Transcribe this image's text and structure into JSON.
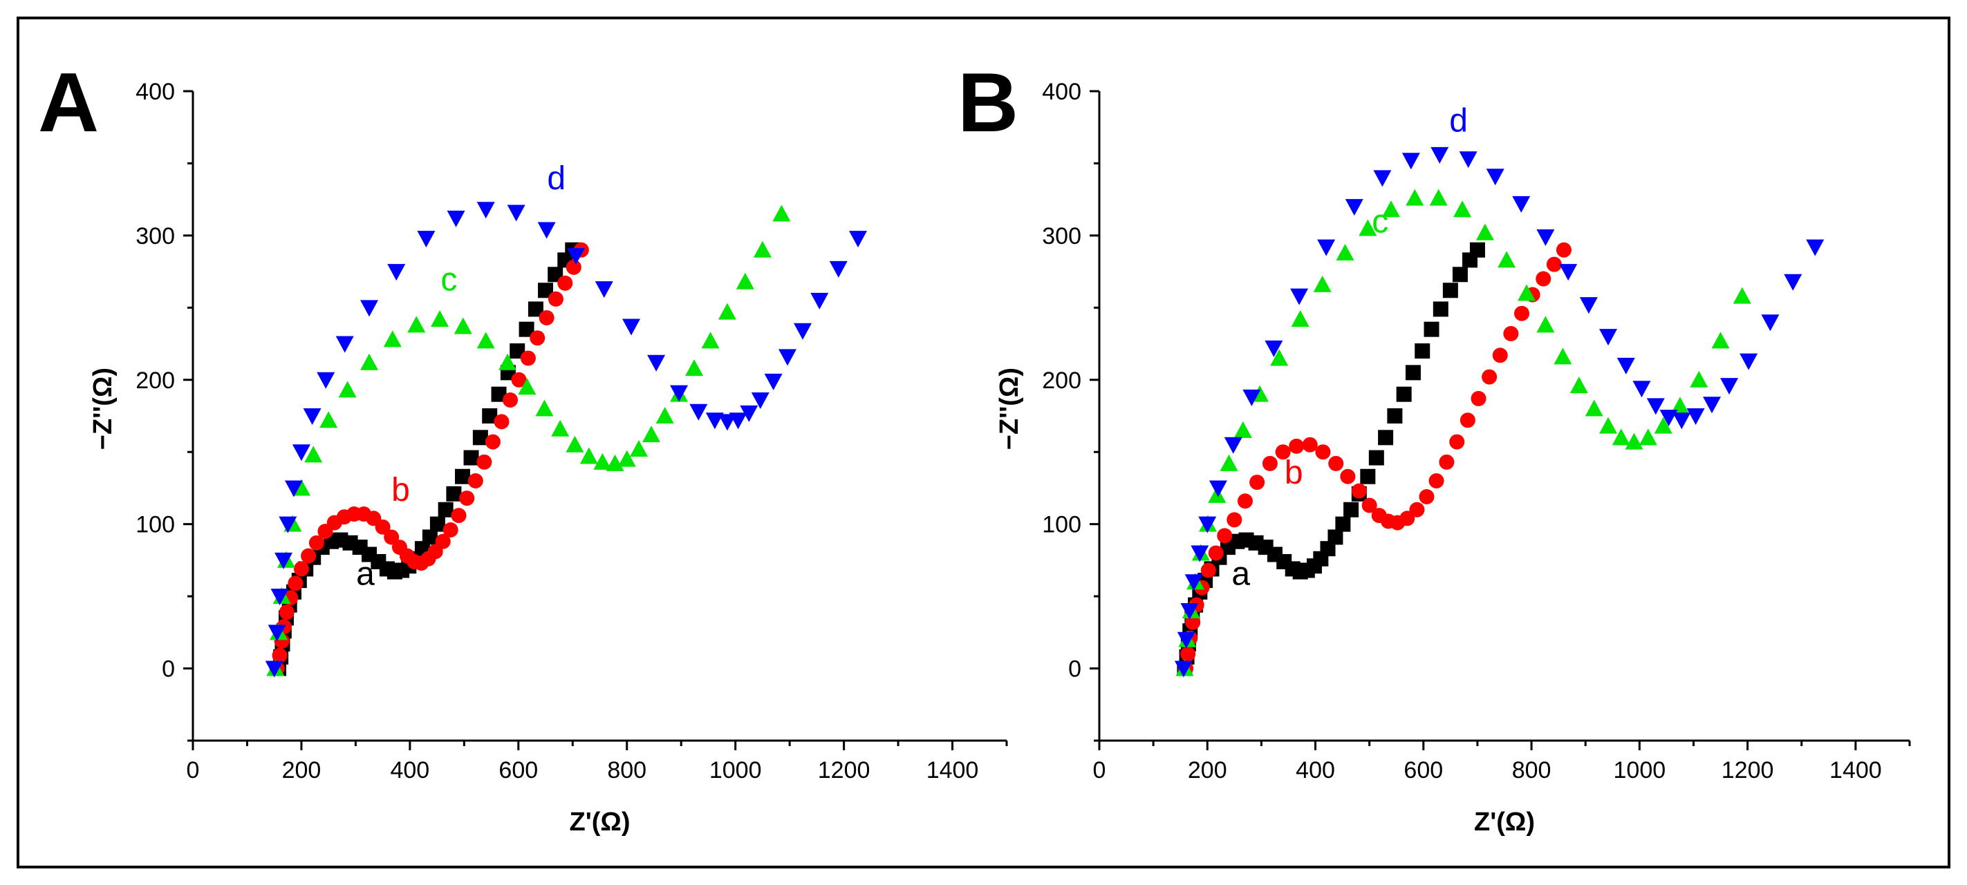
{
  "chart_data": [
    {
      "type": "scatter",
      "panel_label": "A",
      "xlabel": "Z'(Ω)",
      "ylabel": "−Z''(Ω)",
      "xlim": [
        0,
        1500
      ],
      "ylim": [
        -50,
        400
      ],
      "xticks": [
        0,
        200,
        400,
        600,
        800,
        1000,
        1200,
        1400
      ],
      "yticks": [
        0,
        100,
        200,
        300,
        400
      ],
      "series": [
        {
          "name": "a",
          "marker": "square",
          "color": "#000000",
          "x": [
            158,
            162,
            165,
            168,
            172,
            178,
            186,
            196,
            208,
            222,
            238,
            255,
            272,
            290,
            308,
            325,
            342,
            358,
            372,
            385,
            398,
            410,
            423,
            437,
            451,
            466,
            481,
            497,
            513,
            530,
            547,
            564,
            581,
            598,
            615,
            632,
            650,
            668,
            686,
            700
          ],
          "y": [
            0,
            8,
            17,
            26,
            35,
            44,
            53,
            61,
            69,
            77,
            84,
            88,
            89,
            87,
            84,
            79,
            74,
            69,
            67,
            68,
            71,
            76,
            83,
            91,
            100,
            110,
            121,
            133,
            146,
            160,
            175,
            190,
            205,
            220,
            235,
            249,
            262,
            273,
            283,
            290
          ]
        },
        {
          "name": "b",
          "marker": "circle",
          "color": "#ff0000",
          "x": [
            155,
            160,
            164,
            168,
            173,
            180,
            189,
            200,
            213,
            228,
            244,
            261,
            279,
            297,
            315,
            333,
            350,
            366,
            381,
            395,
            408,
            421,
            434,
            447,
            461,
            475,
            490,
            505,
            521,
            537,
            553,
            569,
            585,
            601,
            618,
            635,
            652,
            669,
            686,
            702,
            716
          ],
          "y": [
            0,
            9,
            19,
            29,
            39,
            49,
            59,
            69,
            78,
            87,
            95,
            101,
            105,
            107,
            107,
            104,
            98,
            91,
            84,
            78,
            74,
            73,
            76,
            81,
            88,
            96,
            106,
            118,
            130,
            143,
            157,
            171,
            186,
            200,
            215,
            229,
            243,
            256,
            267,
            278,
            290
          ]
        },
        {
          "name": "c",
          "marker": "triangle-up",
          "color": "#00e600",
          "x": [
            152,
            158,
            164,
            172,
            184,
            200,
            222,
            250,
            285,
            325,
            368,
            412,
            455,
            498,
            540,
            580,
            616,
            648,
            677,
            704,
            730,
            755,
            778,
            800,
            822,
            845,
            870,
            896,
            924,
            954,
            985,
            1018,
            1050,
            1085
          ],
          "y": [
            0,
            25,
            50,
            75,
            100,
            125,
            148,
            172,
            193,
            212,
            228,
            238,
            242,
            237,
            227,
            212,
            195,
            180,
            166,
            155,
            147,
            143,
            142,
            145,
            152,
            162,
            175,
            190,
            208,
            227,
            247,
            268,
            290,
            315
          ]
        },
        {
          "name": "d",
          "marker": "triangle-down",
          "color": "#0000ff",
          "x": [
            150,
            155,
            160,
            167,
            175,
            186,
            200,
            220,
            245,
            280,
            325,
            375,
            430,
            485,
            540,
            596,
            652,
            706,
            758,
            808,
            854,
            896,
            932,
            962,
            985,
            1005,
            1025,
            1046,
            1070,
            1096,
            1124,
            1155,
            1190,
            1226
          ],
          "y": [
            0,
            25,
            50,
            75,
            100,
            125,
            150,
            175,
            200,
            225,
            250,
            275,
            298,
            312,
            318,
            316,
            304,
            286,
            263,
            237,
            212,
            191,
            178,
            172,
            171,
            172,
            177,
            186,
            199,
            216,
            234,
            255,
            277,
            298
          ]
        }
      ],
      "annotations": [
        {
          "text": "a",
          "x": 318,
          "y": 58,
          "color": "#000000"
        },
        {
          "text": "b",
          "x": 383,
          "y": 116,
          "color": "#ff0000"
        },
        {
          "text": "c",
          "x": 472,
          "y": 262,
          "color": "#00e600"
        },
        {
          "text": "d",
          "x": 670,
          "y": 332,
          "color": "#0000ff"
        }
      ]
    },
    {
      "type": "scatter",
      "panel_label": "B",
      "xlabel": "Z'(Ω)",
      "ylabel": "−Z''(Ω)",
      "xlim": [
        0,
        1500
      ],
      "ylim": [
        -50,
        400
      ],
      "xticks": [
        0,
        200,
        400,
        600,
        800,
        1000,
        1200,
        1400
      ],
      "yticks": [
        0,
        100,
        200,
        300,
        400
      ],
      "series": [
        {
          "name": "a",
          "marker": "square",
          "color": "#000000",
          "x": [
            158,
            162,
            165,
            168,
            172,
            178,
            186,
            196,
            208,
            222,
            238,
            255,
            272,
            290,
            308,
            325,
            342,
            358,
            372,
            385,
            398,
            410,
            423,
            437,
            451,
            466,
            481,
            497,
            513,
            530,
            547,
            564,
            581,
            598,
            615,
            632,
            650,
            668,
            686,
            700
          ],
          "y": [
            0,
            8,
            17,
            26,
            35,
            44,
            53,
            61,
            69,
            77,
            84,
            88,
            89,
            87,
            84,
            79,
            74,
            69,
            67,
            68,
            71,
            76,
            83,
            91,
            100,
            110,
            121,
            133,
            146,
            160,
            175,
            190,
            205,
            220,
            235,
            249,
            262,
            273,
            283,
            290
          ]
        },
        {
          "name": "b",
          "marker": "circle",
          "color": "#ff0000",
          "x": [
            160,
            164,
            168,
            173,
            180,
            190,
            202,
            216,
            232,
            250,
            270,
            292,
            316,
            340,
            365,
            390,
            414,
            438,
            460,
            481,
            500,
            518,
            535,
            552,
            570,
            588,
            606,
            624,
            643,
            662,
            682,
            702,
            722,
            742,
            762,
            782,
            802,
            822,
            842,
            860
          ],
          "y": [
            0,
            10,
            21,
            32,
            44,
            56,
            68,
            80,
            92,
            103,
            116,
            129,
            142,
            150,
            154,
            155,
            150,
            142,
            133,
            123,
            113,
            106,
            102,
            101,
            104,
            110,
            119,
            130,
            143,
            157,
            172,
            187,
            202,
            217,
            232,
            246,
            259,
            270,
            280,
            290
          ]
        },
        {
          "name": "c",
          "marker": "triangle-up",
          "color": "#00e600",
          "x": [
            158,
            163,
            170,
            178,
            188,
            201,
            218,
            240,
            266,
            297,
            333,
            372,
            413,
            455,
            497,
            540,
            584,
            628,
            672,
            714,
            754,
            791,
            826,
            858,
            888,
            916,
            942,
            966,
            990,
            1016,
            1044,
            1075,
            1110,
            1150,
            1190
          ],
          "y": [
            0,
            20,
            40,
            60,
            80,
            100,
            120,
            142,
            165,
            190,
            215,
            242,
            266,
            288,
            305,
            318,
            326,
            326,
            318,
            302,
            283,
            260,
            238,
            216,
            196,
            180,
            168,
            160,
            157,
            160,
            168,
            182,
            200,
            227,
            258
          ]
        },
        {
          "name": "d",
          "marker": "triangle-down",
          "color": "#0000ff",
          "x": [
            156,
            161,
            167,
            175,
            186,
            200,
            220,
            248,
            282,
            323,
            370,
            420,
            472,
            524,
            577,
            630,
            683,
            733,
            781,
            826,
            868,
            906,
            942,
            975,
            1004,
            1030,
            1054,
            1078,
            1104,
            1134,
            1166,
            1202,
            1242,
            1284,
            1325
          ],
          "y": [
            0,
            20,
            40,
            60,
            80,
            100,
            125,
            155,
            188,
            222,
            258,
            292,
            320,
            340,
            352,
            356,
            353,
            341,
            322,
            299,
            275,
            252,
            230,
            210,
            194,
            182,
            174,
            172,
            175,
            183,
            196,
            213,
            240,
            268,
            292
          ]
        }
      ],
      "annotations": [
        {
          "text": "a",
          "x": 262,
          "y": 58,
          "color": "#000000"
        },
        {
          "text": "b",
          "x": 360,
          "y": 128,
          "color": "#ff0000"
        },
        {
          "text": "c",
          "x": 520,
          "y": 302,
          "color": "#00e600"
        },
        {
          "text": "d",
          "x": 665,
          "y": 372,
          "color": "#0000ff"
        }
      ]
    }
  ]
}
